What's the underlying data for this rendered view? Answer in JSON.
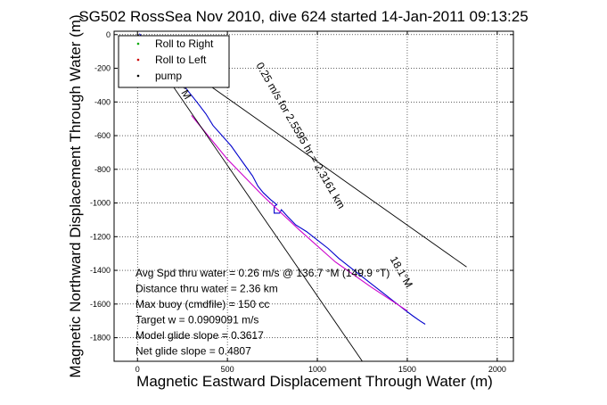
{
  "chart_data": {
    "type": "line",
    "title": "SG502 RossSea Nov 2010, dive 624 started 14-Jan-2011 09:13:25",
    "xlabel": "Magnetic Eastward Displacement Through Water (m)",
    "ylabel": "Magnetic Northward Displacement Through Water (m)",
    "xlim": [
      -130,
      2090
    ],
    "ylim": [
      -1940,
      20
    ],
    "xticks": [
      0,
      500,
      1000,
      1500,
      2000
    ],
    "yticks": [
      0,
      -200,
      -400,
      -600,
      -800,
      -1000,
      -1200,
      -1400,
      -1600,
      -1800
    ],
    "xtick_labels": [
      "0",
      "500",
      "1000",
      "1500",
      "2000"
    ],
    "ytick_labels": [
      "0",
      "-200",
      "-400",
      "-600",
      "-800",
      "-1000",
      "-1200",
      "-1400",
      "-1600",
      "-1800"
    ],
    "grid": true,
    "legend_position": "top-left",
    "legend": [
      {
        "label": "Roll to Right",
        "color": "#00aa00",
        "marker": "dot"
      },
      {
        "label": "Roll to Left",
        "color": "#cc0000",
        "marker": "dot"
      },
      {
        "label": "pump",
        "color": "#000000",
        "marker": "dot"
      }
    ],
    "series": [
      {
        "color": "#0000cc",
        "x": [
          10,
          40,
          90,
          150,
          210,
          270,
          330,
          380,
          420,
          470,
          520,
          560,
          600,
          640,
          670,
          700,
          740,
          775,
          760,
          760,
          790,
          800,
          835,
          880,
          940,
          1000,
          1060,
          1120,
          1180,
          1240,
          1300,
          1360,
          1420,
          1480,
          1530,
          1570,
          1600
        ],
        "y": [
          5,
          -30,
          -100,
          -180,
          -250,
          -320,
          -400,
          -470,
          -540,
          -600,
          -660,
          -720,
          -780,
          -840,
          -900,
          -940,
          -980,
          -1010,
          -1020,
          -1060,
          -1060,
          -1040,
          -1080,
          -1130,
          -1170,
          -1220,
          -1270,
          -1330,
          -1380,
          -1430,
          -1480,
          -1530,
          -1580,
          -1630,
          -1670,
          -1700,
          -1720
        ]
      },
      {
        "color": "#cc00cc",
        "x": [
          300,
          500,
          700,
          900,
          1100,
          1300,
          1500
        ],
        "y": [
          -480,
          -740,
          -960,
          -1160,
          -1350,
          -1500,
          -1640
        ]
      },
      {
        "color": "#000000",
        "x": [
          0,
          1250
        ],
        "y": [
          0,
          -1940
        ]
      },
      {
        "color": "#000000",
        "x": [
          0,
          1830
        ],
        "y": [
          0,
          -1380
        ]
      }
    ],
    "annotations": [
      {
        "text": "1°M",
        "x": 240,
        "y": -340,
        "rotation": 60
      },
      {
        "text": "0.25 m/s for 2.5595 hr = 2.3161 km",
        "x": 890,
        "y": -610,
        "rotation": 60
      },
      {
        "text": "18.1°M",
        "x": 1450,
        "y": -1420,
        "rotation": 60
      }
    ],
    "stats": [
      "Avg Spd thru water =  0.26 m/s @ 136.7 °M (149.9 °T)",
      "Distance thru water =  2.36 km",
      "Max buoy (cmdfile) = 150 cc",
      "Target w = 0.0909091 m/s",
      "Model glide slope = 0.3617",
      "Net glide slope = 0.4807"
    ]
  }
}
